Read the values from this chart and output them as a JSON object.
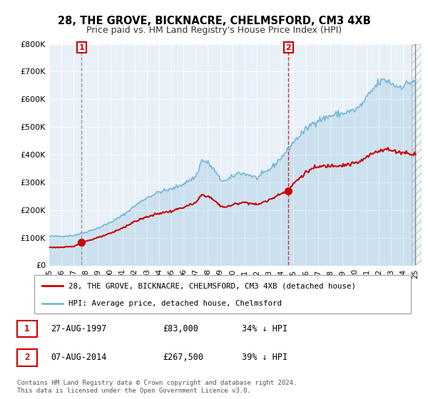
{
  "title": "28, THE GROVE, BICKNACRE, CHELMSFORD, CM3 4XB",
  "subtitle": "Price paid vs. HM Land Registry's House Price Index (HPI)",
  "ylim": [
    0,
    800000
  ],
  "yticks": [
    0,
    100000,
    200000,
    300000,
    400000,
    500000,
    600000,
    700000,
    800000
  ],
  "ytick_labels": [
    "£0",
    "£100K",
    "£200K",
    "£300K",
    "£400K",
    "£500K",
    "£600K",
    "£700K",
    "£800K"
  ],
  "xlim_left": 1995.0,
  "xlim_right": 2025.5,
  "sale1_x": 1997.65,
  "sale1_y": 83000,
  "sale2_x": 2014.6,
  "sale2_y": 267500,
  "hpi_color": "#7ab8d8",
  "price_color": "#cc0000",
  "bg_color": "#e8f0f8",
  "legend_label_price": "28, THE GROVE, BICKNACRE, CHELMSFORD, CM3 4XB (detached house)",
  "legend_label_hpi": "HPI: Average price, detached house, Chelmsford",
  "table_row1": [
    "1",
    "27-AUG-1997",
    "£83,000",
    "34% ↓ HPI"
  ],
  "table_row2": [
    "2",
    "07-AUG-2014",
    "£267,500",
    "39% ↓ HPI"
  ],
  "footnote": "Contains HM Land Registry data © Crown copyright and database right 2024.\nThis data is licensed under the Open Government Licence v3.0."
}
